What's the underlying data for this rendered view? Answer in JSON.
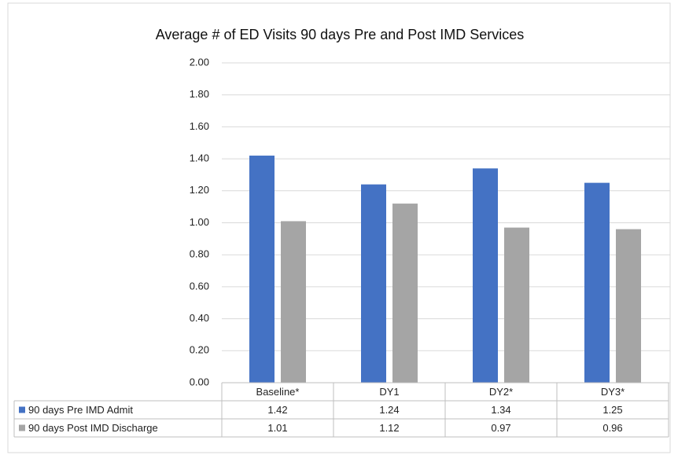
{
  "chart_data": {
    "type": "bar",
    "title": "Average # of ED Visits 90 days Pre and Post IMD Services",
    "categories": [
      "Baseline*",
      "DY1",
      "DY2*",
      "DY3*"
    ],
    "series": [
      {
        "name": "90 days Pre IMD Admit",
        "color": "#4472c4",
        "values": [
          1.42,
          1.24,
          1.34,
          1.25
        ]
      },
      {
        "name": "90 days Post IMD Discharge",
        "color": "#a5a5a5",
        "values": [
          1.01,
          1.12,
          0.97,
          0.96
        ]
      }
    ],
    "ylim": [
      0,
      2
    ],
    "yticks": [
      {
        "value": 0,
        "label": "0.00"
      },
      {
        "value": 0.2,
        "label": "0.20"
      },
      {
        "value": 0.4,
        "label": "0.40"
      },
      {
        "value": 0.6,
        "label": "0.60"
      },
      {
        "value": 0.8,
        "label": "0.80"
      },
      {
        "value": 1,
        "label": "1.00"
      },
      {
        "value": 1.2,
        "label": "1.20"
      },
      {
        "value": 1.4,
        "label": "1.40"
      },
      {
        "value": 1.6,
        "label": "1.60"
      },
      {
        "value": 1.8,
        "label": "1.80"
      },
      {
        "value": 2,
        "label": "2.00"
      }
    ],
    "grid": true,
    "data_table": true
  }
}
